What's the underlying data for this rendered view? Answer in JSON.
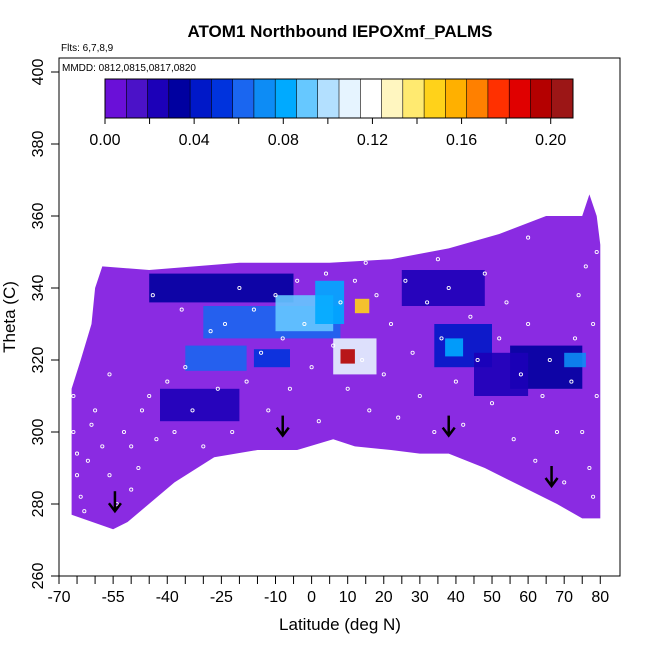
{
  "chart_data": {
    "type": "heatmap",
    "title": "ATOM1 Northbound IEPOXmf_PALMS",
    "flights_note": "Flts: 6,7,8,9",
    "dates_note": "MMDD: 0812,0815,0817,0820",
    "xlabel": "Latitude (deg N)",
    "ylabel": "Theta (C)",
    "xlim": [
      -70,
      80
    ],
    "ylim": [
      260,
      400
    ],
    "x_tick_labels": [
      "-70",
      "-55",
      "-40",
      "-25",
      "-10",
      "0",
      "10",
      "20",
      "30",
      "40",
      "50",
      "60",
      "70",
      "80"
    ],
    "x_tick_values": [
      -70,
      -55,
      -40,
      -25,
      -10,
      0,
      10,
      20,
      30,
      40,
      50,
      60,
      70,
      80
    ],
    "x_minor_ticks": [
      -65,
      -60,
      -50,
      -45,
      -35,
      -30,
      -20,
      -15,
      -5,
      5,
      15,
      25,
      35,
      45,
      55,
      65,
      75
    ],
    "y_tick_labels": [
      "260",
      "280",
      "300",
      "320",
      "340",
      "360",
      "380",
      "400"
    ],
    "y_tick_values": [
      260,
      280,
      300,
      320,
      340,
      360,
      380,
      400
    ],
    "colorbar": {
      "range": [
        0,
        0.21
      ],
      "tick_labels": [
        "0.00",
        "0.04",
        "0.08",
        "0.12",
        "0.16",
        "0.20"
      ],
      "tick_values": [
        0.0,
        0.04,
        0.08,
        0.12,
        0.16,
        0.2
      ],
      "colors": [
        "#6a10d8",
        "#4b12c8",
        "#1c00b8",
        "#0000a0",
        "#0018c8",
        "#0033dd",
        "#1a66f0",
        "#0d8cf5",
        "#00aaff",
        "#66c8ff",
        "#b3e0ff",
        "#e6f4ff",
        "#ffffff",
        "#fff6c0",
        "#ffea70",
        "#ffd21a",
        "#ffb000",
        "#ff8000",
        "#ff3000",
        "#e00000",
        "#b40000",
        "#9c1616"
      ]
    },
    "background_color": "#8a2be2",
    "domain_boundary": {
      "bottom": [
        [
          -66.5,
          277
        ],
        [
          -55,
          273
        ],
        [
          -51,
          275
        ],
        [
          -38,
          286
        ],
        [
          -27,
          293
        ],
        [
          -15,
          295
        ],
        [
          -4,
          295
        ],
        [
          6,
          298
        ],
        [
          12,
          296
        ],
        [
          22,
          295
        ],
        [
          30,
          294
        ],
        [
          38,
          294
        ],
        [
          48,
          290
        ],
        [
          58,
          285
        ],
        [
          68,
          280
        ],
        [
          75,
          276
        ],
        [
          80,
          276
        ]
      ],
      "top": [
        [
          80,
          297
        ],
        [
          80,
          352
        ],
        [
          79,
          360
        ],
        [
          77,
          366
        ],
        [
          75,
          360
        ],
        [
          65,
          360
        ],
        [
          52,
          355
        ],
        [
          38,
          351
        ],
        [
          22,
          348
        ],
        [
          5,
          347
        ],
        [
          -20,
          347
        ],
        [
          -45,
          345
        ],
        [
          -58,
          346
        ],
        [
          -60,
          340
        ],
        [
          -61,
          330
        ],
        [
          -64,
          320
        ],
        [
          -66.5,
          312
        ]
      ]
    },
    "patches": [
      {
        "x": [
          -45,
          -5
        ],
        "y": [
          336,
          344
        ],
        "value": 0.03
      },
      {
        "x": [
          -30,
          8
        ],
        "y": [
          326,
          335
        ],
        "value": 0.06
      },
      {
        "x": [
          -10,
          6
        ],
        "y": [
          328,
          338
        ],
        "value": 0.09
      },
      {
        "x": [
          -35,
          -18
        ],
        "y": [
          317,
          324
        ],
        "value": 0.06
      },
      {
        "x": [
          -16,
          -6
        ],
        "y": [
          318,
          323
        ],
        "value": 0.05
      },
      {
        "x": [
          1,
          9
        ],
        "y": [
          330,
          342
        ],
        "value": 0.08
      },
      {
        "x": [
          12,
          16
        ],
        "y": [
          333,
          337
        ],
        "value": 0.15
      },
      {
        "x": [
          6,
          18
        ],
        "y": [
          316,
          326
        ],
        "value": 0.11
      },
      {
        "x": [
          8,
          12
        ],
        "y": [
          319,
          323
        ],
        "value": 0.2
      },
      {
        "x": [
          -42,
          -20
        ],
        "y": [
          303,
          312
        ],
        "value": 0.02
      },
      {
        "x": [
          25,
          48
        ],
        "y": [
          335,
          345
        ],
        "value": 0.02
      },
      {
        "x": [
          34,
          50
        ],
        "y": [
          318,
          330
        ],
        "value": 0.04
      },
      {
        "x": [
          37,
          42
        ],
        "y": [
          321,
          326
        ],
        "value": 0.08
      },
      {
        "x": [
          55,
          75
        ],
        "y": [
          312,
          324
        ],
        "value": 0.03
      },
      {
        "x": [
          70,
          76
        ],
        "y": [
          318,
          322
        ],
        "value": 0.07
      },
      {
        "x": [
          45,
          60
        ],
        "y": [
          310,
          322
        ],
        "value": 0.02
      }
    ],
    "sample_points": [
      [
        -66,
        310
      ],
      [
        -66,
        300
      ],
      [
        -65,
        294
      ],
      [
        -65,
        288
      ],
      [
        -64,
        282
      ],
      [
        -63,
        278
      ],
      [
        -62,
        292
      ],
      [
        -61,
        302
      ],
      [
        -60,
        306
      ],
      [
        -58,
        296
      ],
      [
        -56,
        288
      ],
      [
        -54,
        280
      ],
      [
        -52,
        300
      ],
      [
        -50,
        296
      ],
      [
        -50,
        284
      ],
      [
        -48,
        290
      ],
      [
        -47,
        306
      ],
      [
        -45,
        310
      ],
      [
        -43,
        298
      ],
      [
        -40,
        314
      ],
      [
        -38,
        300
      ],
      [
        -35,
        318
      ],
      [
        -33,
        306
      ],
      [
        -30,
        296
      ],
      [
        -28,
        328
      ],
      [
        -26,
        312
      ],
      [
        -24,
        330
      ],
      [
        -22,
        300
      ],
      [
        -20,
        340
      ],
      [
        -18,
        314
      ],
      [
        -16,
        334
      ],
      [
        -14,
        322
      ],
      [
        -12,
        306
      ],
      [
        -10,
        338
      ],
      [
        -8,
        326
      ],
      [
        -6,
        312
      ],
      [
        -4,
        342
      ],
      [
        -2,
        330
      ],
      [
        0,
        318
      ],
      [
        2,
        303
      ],
      [
        4,
        344
      ],
      [
        6,
        324
      ],
      [
        8,
        336
      ],
      [
        10,
        312
      ],
      [
        12,
        342
      ],
      [
        14,
        320
      ],
      [
        16,
        306
      ],
      [
        18,
        338
      ],
      [
        20,
        316
      ],
      [
        22,
        330
      ],
      [
        24,
        304
      ],
      [
        26,
        342
      ],
      [
        28,
        322
      ],
      [
        30,
        310
      ],
      [
        32,
        336
      ],
      [
        34,
        300
      ],
      [
        36,
        326
      ],
      [
        38,
        340
      ],
      [
        40,
        314
      ],
      [
        42,
        302
      ],
      [
        44,
        332
      ],
      [
        46,
        320
      ],
      [
        48,
        344
      ],
      [
        50,
        308
      ],
      [
        52,
        326
      ],
      [
        54,
        336
      ],
      [
        56,
        298
      ],
      [
        58,
        316
      ],
      [
        60,
        330
      ],
      [
        62,
        292
      ],
      [
        64,
        310
      ],
      [
        66,
        320
      ],
      [
        68,
        300
      ],
      [
        70,
        286
      ],
      [
        72,
        314
      ],
      [
        73,
        326
      ],
      [
        74,
        338
      ],
      [
        75,
        300
      ],
      [
        76,
        346
      ],
      [
        77,
        290
      ],
      [
        78,
        330
      ],
      [
        79,
        310
      ],
      [
        79,
        350
      ],
      [
        78,
        282
      ],
      [
        -36,
        334
      ],
      [
        -44,
        338
      ],
      [
        -60,
        344
      ],
      [
        -56,
        316
      ],
      [
        15,
        347
      ],
      [
        35,
        348
      ],
      [
        60,
        354
      ]
    ],
    "arrows": [
      {
        "x": -54.5,
        "theta": 278
      },
      {
        "x": -8,
        "theta": 299
      },
      {
        "x": 38,
        "theta": 299
      },
      {
        "x": 66.5,
        "theta": 285
      }
    ]
  }
}
